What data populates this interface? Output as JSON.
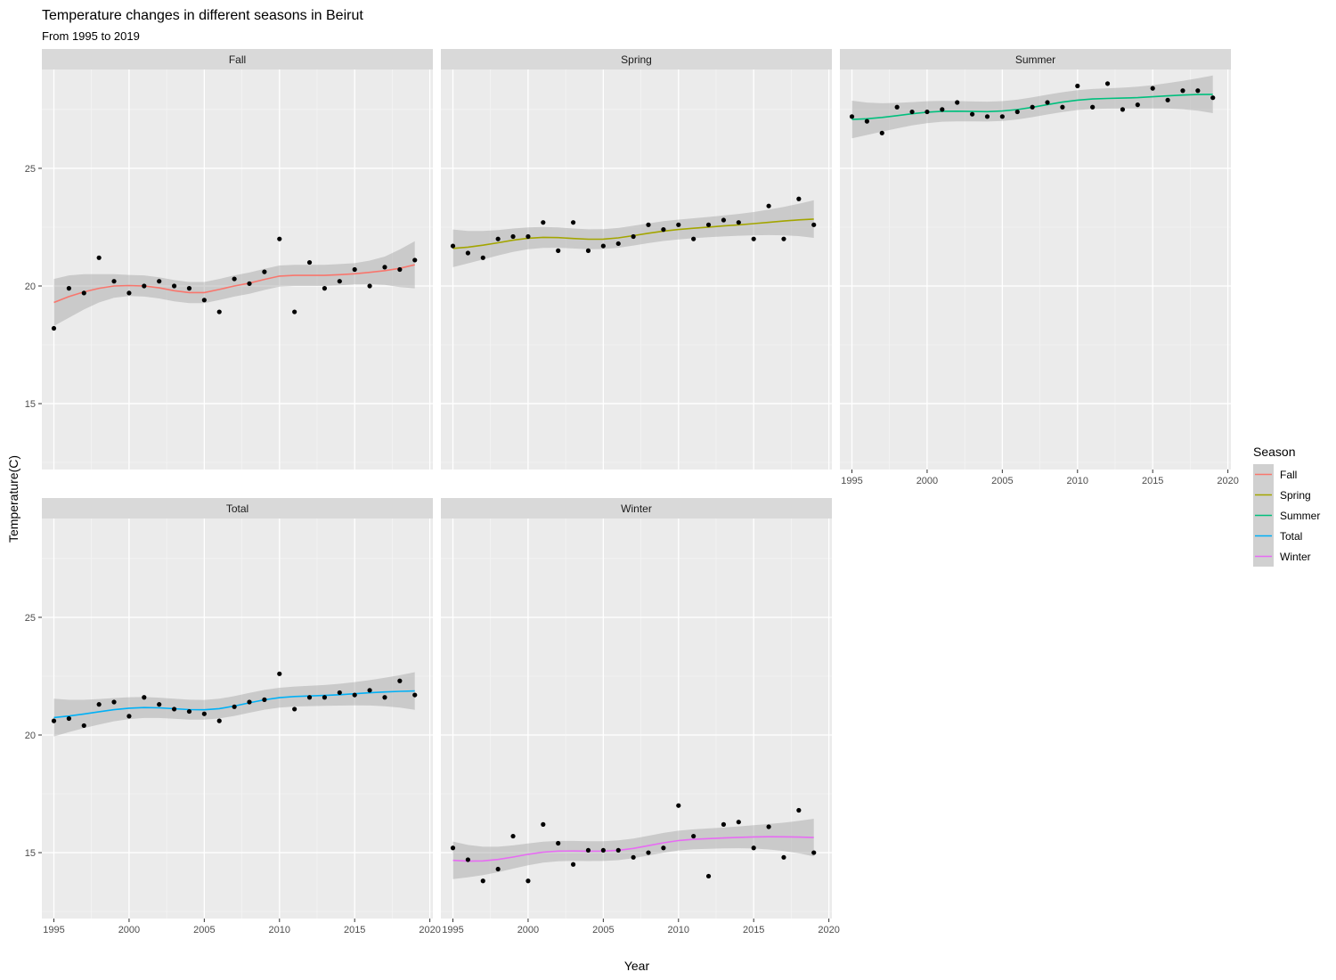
{
  "chart_data": {
    "type": "scatter",
    "title": "Temperature changes in different seasons in Beirut",
    "subtitle": "From 1995 to 2019",
    "xlabel": "Year",
    "ylabel": "Temperature(C)",
    "xlim": [
      1994.2,
      2020.2
    ],
    "ylim": [
      12.2,
      29.2
    ],
    "x_ticks": [
      1995,
      2000,
      2005,
      2010,
      2015,
      2020
    ],
    "y_ticks": [
      15,
      20,
      25
    ],
    "grid": true,
    "legend": {
      "title": "Season",
      "position": "right",
      "entries": [
        "Fall",
        "Spring",
        "Summer",
        "Total",
        "Winter"
      ]
    },
    "x": [
      1995,
      1996,
      1997,
      1998,
      1999,
      2000,
      2001,
      2002,
      2003,
      2004,
      2005,
      2006,
      2007,
      2008,
      2009,
      2010,
      2011,
      2012,
      2013,
      2014,
      2015,
      2016,
      2017,
      2018,
      2019
    ],
    "series": [
      {
        "name": "Fall",
        "color": "#F8766D",
        "values": [
          18.2,
          19.9,
          19.7,
          21.2,
          20.2,
          19.7,
          20.0,
          20.2,
          20.0,
          19.9,
          19.4,
          18.9,
          20.3,
          20.1,
          20.6,
          22.0,
          18.9,
          21.0,
          19.9,
          20.2,
          20.7,
          20.0,
          20.8,
          20.7,
          21.1
        ],
        "trend": [
          19.3,
          19.55,
          19.75,
          19.9,
          20.0,
          20.02,
          20.0,
          19.92,
          19.8,
          19.72,
          19.72,
          19.85,
          20.0,
          20.12,
          20.28,
          20.42,
          20.45,
          20.45,
          20.45,
          20.48,
          20.52,
          20.58,
          20.65,
          20.75,
          20.9
        ],
        "band_width": [
          1.0,
          0.9,
          0.75,
          0.6,
          0.5,
          0.45,
          0.45,
          0.45,
          0.45,
          0.45,
          0.45,
          0.45,
          0.45,
          0.45,
          0.45,
          0.45,
          0.45,
          0.45,
          0.45,
          0.45,
          0.45,
          0.5,
          0.6,
          0.8,
          1.0
        ]
      },
      {
        "name": "Spring",
        "color": "#A3A500",
        "values": [
          21.7,
          21.4,
          21.2,
          22.0,
          22.1,
          22.1,
          22.7,
          21.5,
          22.7,
          21.5,
          21.7,
          21.8,
          22.1,
          22.6,
          22.4,
          22.6,
          22.0,
          22.6,
          22.8,
          22.7,
          22.0,
          23.4,
          22.0,
          23.7,
          22.6
        ]
      },
      {
        "name": "Summer",
        "color": "#00BF7D",
        "values": [
          27.2,
          27.0,
          26.5,
          27.6,
          27.4,
          27.4,
          27.5,
          27.8,
          27.3,
          27.2,
          27.2,
          27.4,
          27.6,
          27.8,
          27.6,
          28.5,
          27.6,
          28.6,
          27.5,
          27.7,
          28.4,
          27.9,
          28.3,
          28.3,
          28.0
        ]
      },
      {
        "name": "Total",
        "color": "#00B0F6",
        "values": [
          20.6,
          20.7,
          20.4,
          21.3,
          21.4,
          20.8,
          21.6,
          21.3,
          21.1,
          21.0,
          20.9,
          20.6,
          21.2,
          21.4,
          21.5,
          22.6,
          21.1,
          21.6,
          21.6,
          21.8,
          21.7,
          21.9,
          21.6,
          22.3,
          21.7
        ]
      },
      {
        "name": "Winter",
        "color": "#E76BF3",
        "values": [
          15.2,
          14.7,
          13.8,
          14.3,
          15.7,
          13.8,
          16.2,
          15.4,
          14.5,
          15.1,
          15.1,
          15.1,
          14.8,
          15.0,
          15.2,
          17.0,
          15.7,
          14.0,
          16.2,
          16.3,
          15.2,
          16.1,
          14.8,
          16.8,
          15.0
        ]
      }
    ]
  }
}
